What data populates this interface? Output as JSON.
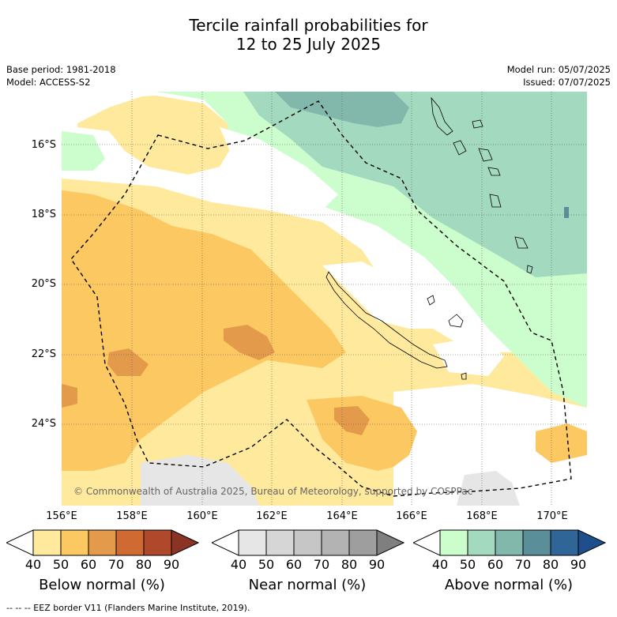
{
  "title": {
    "line1": "Tercile rainfall probabilities for",
    "line2": "12 to 25 July 2025"
  },
  "meta_left": {
    "base_period": "Base period: 1981-2018",
    "model": "Model: ACCESS-S2"
  },
  "meta_right": {
    "model_run": "Model run: 05/07/2025",
    "issued": "Issued: 07/07/2025"
  },
  "map": {
    "lat_labels": [
      "16°S",
      "18°S",
      "20°S",
      "22°S",
      "24°S"
    ],
    "lon_labels": [
      "156°E",
      "158°E",
      "160°E",
      "162°E",
      "164°E",
      "166°E",
      "168°E",
      "170°E"
    ],
    "copyright": "© Commonwealth of Australia 2025, Bureau of Meteorology, supported by COSPPac"
  },
  "colorbars": {
    "ticks": [
      "40",
      "50",
      "60",
      "70",
      "80",
      "90"
    ],
    "below": {
      "label": "Below normal (%)",
      "colors": [
        "#ffffff",
        "#fee99d",
        "#fcc862",
        "#e39a4a",
        "#cf6a33",
        "#b0482c",
        "#8b3425"
      ]
    },
    "near": {
      "label": "Near normal (%)",
      "colors": [
        "#ffffff",
        "#e6e6e6",
        "#d6d6d6",
        "#c6c6c6",
        "#b3b3b3",
        "#9e9e9e",
        "#7f7f7f"
      ]
    },
    "above": {
      "label": "Above normal (%)",
      "colors": [
        "#ffffff",
        "#ccfdcc",
        "#a3d9bf",
        "#82b8ab",
        "#5a8f9a",
        "#2f6597",
        "#1e4f8a"
      ]
    }
  },
  "legend_note": "--  --  -- EEZ border V11 (Flanders Marine Institute, 2019)."
}
